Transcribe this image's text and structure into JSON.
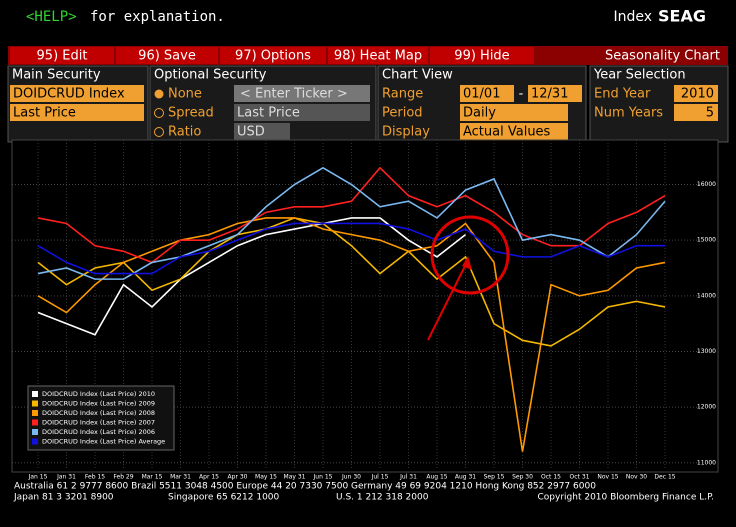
{
  "header": {
    "help": "<HELP>",
    "help_text": "for explanation.",
    "index": "Index",
    "code": "SEAG"
  },
  "menu": [
    "95) Edit",
    "96) Save",
    "97) Options",
    "98) Heat Map",
    "99) Hide"
  ],
  "menu_title": "Seasonality Chart",
  "main_security": {
    "title": "Main Security",
    "ticker": "DOIDCRUD Index",
    "field": "Last Price"
  },
  "optional_security": {
    "title": "Optional Security",
    "options": [
      "None",
      "Spread",
      "Ratio"
    ],
    "ticker": "< Enter Ticker >",
    "field": "Last Price",
    "currency": "USD"
  },
  "chart_view": {
    "title": "Chart View",
    "range_label": "Range",
    "range_start": "01/01",
    "range_sep": "-",
    "range_end": "12/31",
    "period_label": "Period",
    "period": "Daily",
    "display_label": "Display",
    "display": "Actual Values"
  },
  "year_selection": {
    "title": "Year Selection",
    "end_year_label": "End Year",
    "end_year": "2010",
    "num_years_label": "Num Years",
    "num_years": "5"
  },
  "chart_data": {
    "type": "line",
    "categories": [
      "Jan 15",
      "Jan 31",
      "Feb 15",
      "Feb 29",
      "Mar 15",
      "Mar 31",
      "Apr 15",
      "Apr 30",
      "May 15",
      "May 31",
      "Jun 15",
      "Jun 30",
      "Jul 15",
      "Jul 31",
      "Aug 15",
      "Aug 31",
      "Sep 15",
      "Sep 30",
      "Oct 15",
      "Oct 31",
      "Nov 15",
      "Nov 30",
      "Dec 15"
    ],
    "ylim": [
      10870,
      16800
    ],
    "yticks": [
      11000,
      12000,
      13000,
      14000,
      15000,
      16000
    ],
    "grid": true,
    "series": [
      {
        "name": "DOIDCRUD Index (Last Price) 2010",
        "color": "#ffffff",
        "values": [
          13700,
          13500,
          13300,
          14200,
          13800,
          14300,
          14600,
          14900,
          15100,
          15200,
          15300,
          15400,
          15400,
          15000,
          14700,
          15100,
          null,
          null,
          null,
          null,
          null,
          null,
          null
        ]
      },
      {
        "name": "DOIDCRUD Index (Last Price) 2009",
        "color": "#f5b800",
        "values": [
          14600,
          14200,
          14500,
          14600,
          14100,
          14300,
          14800,
          15100,
          15200,
          15400,
          15300,
          14900,
          14400,
          14800,
          14300,
          14700,
          13500,
          13200,
          13100,
          13400,
          13800,
          13900,
          13800
        ]
      },
      {
        "name": "DOIDCRUD Index (Last Price) 2008",
        "color": "#ff9900",
        "values": [
          14000,
          13700,
          14200,
          14600,
          14800,
          15000,
          15100,
          15300,
          15400,
          15400,
          15200,
          15100,
          15000,
          14800,
          14900,
          15300,
          14600,
          11200,
          14200,
          14000,
          14100,
          14500,
          14600
        ]
      },
      {
        "name": "DOIDCRUD Index (Last Price) 2007",
        "color": "#ff2020",
        "values": [
          15400,
          15300,
          14900,
          14800,
          14600,
          15000,
          15000,
          15200,
          15500,
          15600,
          15600,
          15700,
          16300,
          15800,
          15600,
          15800,
          15500,
          15100,
          14900,
          14900,
          15300,
          15500,
          15800
        ]
      },
      {
        "name": "DOIDCRUD Index (Last Price) 2006",
        "color": "#7ab8f0",
        "values": [
          14400,
          14500,
          14300,
          14300,
          14600,
          14700,
          14900,
          15100,
          15600,
          16000,
          16300,
          16000,
          15600,
          15700,
          15400,
          15900,
          16100,
          15000,
          15100,
          15000,
          14700,
          15100,
          15700
        ]
      },
      {
        "name": "DOIDCRUD Index (Last Price) Average",
        "color": "#1010e0",
        "values": [
          14900,
          14600,
          14400,
          14400,
          14400,
          14700,
          14800,
          15000,
          15200,
          15300,
          15300,
          15300,
          15300,
          15200,
          15000,
          15200,
          14800,
          14700,
          14700,
          14900,
          14700,
          14900,
          14900
        ]
      }
    ]
  },
  "footer": {
    "line1": "Australia 61 2 9777 8600 Brazil 5511 3048 4500 Europe 44 20 7330 7500 Germany 49 69 9204 1210 Hong Kong 852 2977 6000",
    "japan": "Japan 81 3 3201 8900",
    "singapore": "Singapore 65 6212 1000",
    "us": "U.S. 1 212 318 2000",
    "copyright": "Copyright 2010 Bloomberg Finance L.P."
  }
}
